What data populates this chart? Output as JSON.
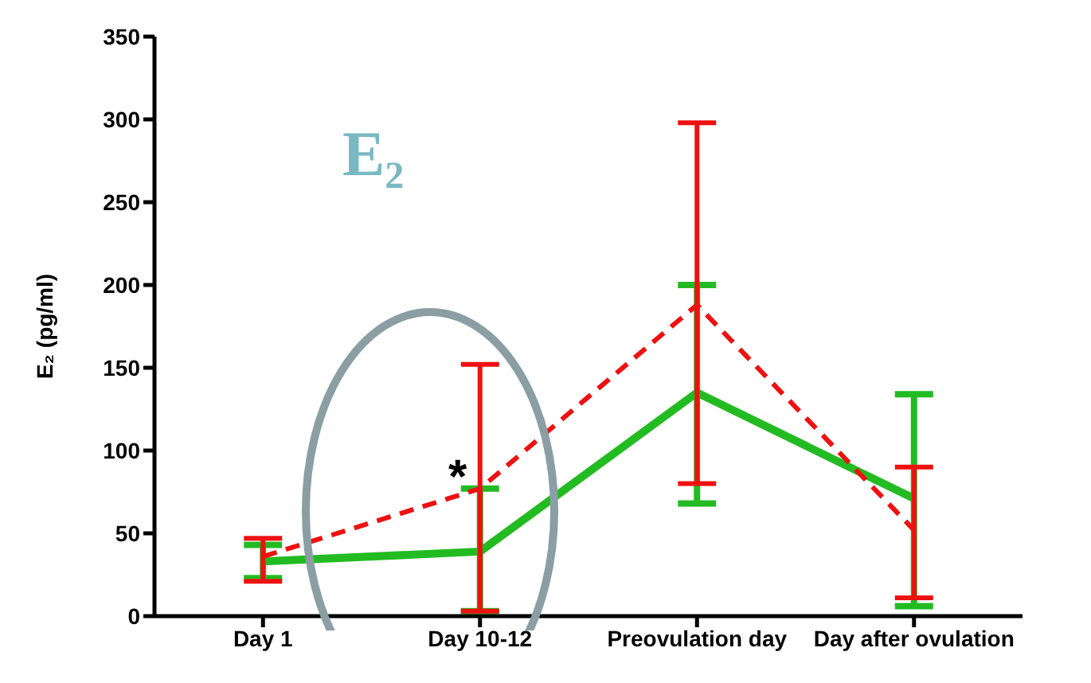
{
  "chart_data": {
    "type": "line",
    "title": "E₂",
    "ylabel": "E₂ (pg/ml)",
    "categories": [
      "Day 1",
      "Day 10-12",
      "Preovulation day",
      "Day after ovulation"
    ],
    "series": [
      {
        "color": "#22bb22",
        "line_style": "solid",
        "values": [
          33,
          39,
          135,
          71
        ],
        "errors": [
          [
            23,
            43
          ],
          [
            3,
            77
          ],
          [
            68,
            200
          ],
          [
            6,
            134
          ]
        ]
      },
      {
        "color": "#ee1111",
        "line_style": "dashed",
        "values": [
          36,
          77,
          188,
          52
        ],
        "errors": [
          [
            21,
            47
          ],
          [
            3,
            152
          ],
          [
            80,
            298
          ],
          [
            11,
            90
          ]
        ]
      }
    ],
    "marker": "none",
    "grid": false,
    "legend": false,
    "ylim": [
      0,
      350
    ],
    "yticks": [
      0,
      50,
      100,
      150,
      200,
      250,
      300,
      350
    ],
    "annotations": [
      {
        "text": "*",
        "x": "Day 10-12",
        "y": 88
      }
    ]
  }
}
